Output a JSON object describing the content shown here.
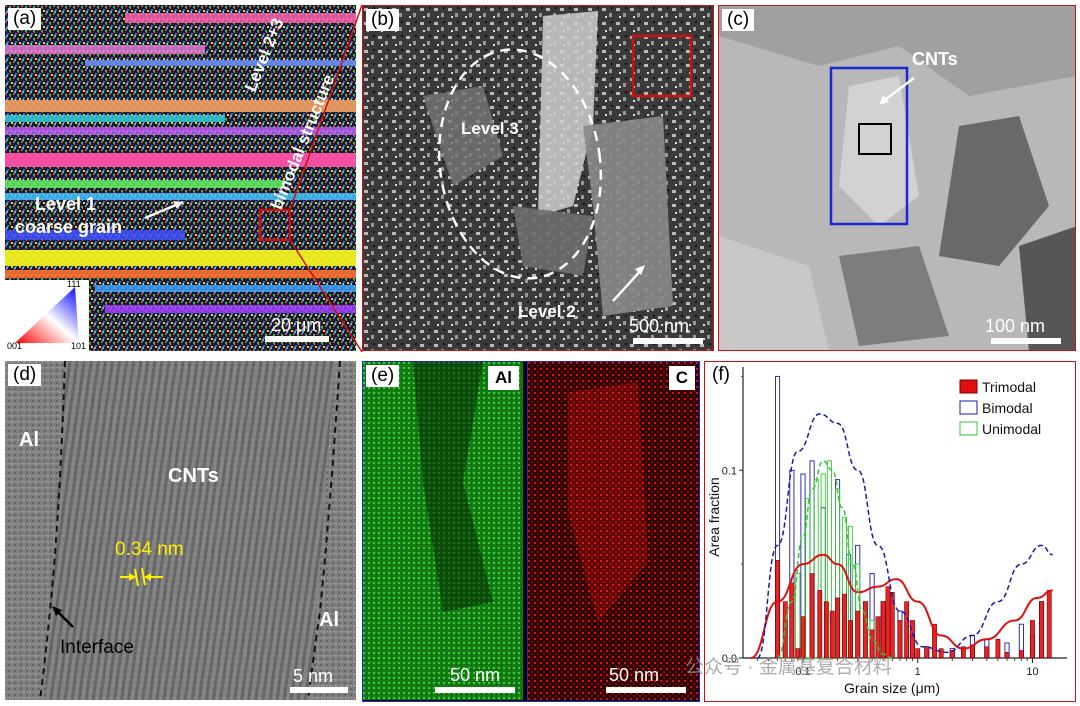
{
  "panels": {
    "a": {
      "label": "(a)",
      "annotation_level1_line1": "Level 1",
      "annotation_level1_line2": "coarse grain",
      "annotation_level23_line1": "Level 2+3",
      "annotation_level23_line2": "bimodal structure",
      "ipf_111": "111",
      "ipf_001": "001",
      "ipf_101": "101",
      "scale": "20 μm"
    },
    "b": {
      "label": "(b)",
      "level3": "Level 3",
      "level2": "Level 2",
      "scale": "500 nm"
    },
    "c": {
      "label": "(c)",
      "cnts": "CNTs",
      "scale": "100 nm"
    },
    "d": {
      "label": "(d)",
      "al_left": "Al",
      "al_right": "Al",
      "cnts": "CNTs",
      "spacing": "0.34 nm",
      "interface": "Interface",
      "scale": "5 nm"
    },
    "e": {
      "label": "(e)",
      "map_al": "Al",
      "map_c": "C",
      "scale_al": "50 nm",
      "scale_c": "50 nm"
    },
    "f": {
      "label": "(f)"
    }
  },
  "watermark": "公众号 · 金属基复合材料",
  "chart_data": {
    "type": "bar",
    "ylabel": "Area fraction",
    "xlabel": "Grain size (μm)",
    "xscale": "log",
    "xlim": [
      0.03,
      20
    ],
    "ylim": [
      0,
      0.155
    ],
    "xticks": [
      "0.1",
      "1",
      "10"
    ],
    "yticks": [
      "0.0",
      "0.1"
    ],
    "legend_position": "top-right",
    "colors": {
      "Trimodal": "#e01010",
      "Bimodal": "#1a1aa8",
      "Unimodal": "#35c935"
    },
    "series": [
      {
        "name": "Trimodal",
        "style": "filled bars + fitted solid curve",
        "x": [
          0.06,
          0.07,
          0.08,
          0.09,
          0.1,
          0.12,
          0.14,
          0.16,
          0.18,
          0.2,
          0.23,
          0.26,
          0.3,
          0.35,
          0.4,
          0.45,
          0.5,
          0.55,
          0.6,
          0.7,
          0.8,
          0.9,
          1.0,
          1.2,
          1.4,
          1.6,
          2.0,
          2.5,
          3.0,
          4.0,
          5.0,
          6.0,
          8.0,
          10.0,
          12.0,
          14.0
        ],
        "values": [
          0.052,
          0.03,
          0.04,
          0.005,
          0.022,
          0.045,
          0.036,
          0.03,
          0.025,
          0.032,
          0.034,
          0.02,
          0.025,
          0.03,
          0.015,
          0.022,
          0.03,
          0.038,
          0.035,
          0.02,
          0.03,
          0.02,
          0.005,
          0.006,
          0.018,
          0.005,
          0.004,
          0.006,
          0.007,
          0.006,
          0.01,
          0.003,
          0.004,
          0.02,
          0.03,
          0.036
        ],
        "fit_x": [
          0.035,
          0.06,
          0.1,
          0.15,
          0.2,
          0.3,
          0.45,
          0.65,
          1.0,
          1.6,
          2.5,
          4,
          7,
          11,
          15
        ],
        "fit_y": [
          0.0,
          0.03,
          0.05,
          0.055,
          0.05,
          0.035,
          0.038,
          0.042,
          0.03,
          0.012,
          0.005,
          0.01,
          0.02,
          0.032,
          0.036
        ]
      },
      {
        "name": "Bimodal",
        "style": "hollow bars + fitted dashed curve",
        "x": [
          0.06,
          0.08,
          0.1,
          0.12,
          0.15,
          0.2,
          0.25,
          0.3,
          0.4,
          0.5,
          0.7,
          0.9,
          1.2,
          2.0,
          3.0,
          4.0,
          6.0,
          8.0,
          10.0,
          12.0
        ],
        "values": [
          0.15,
          0.1,
          0.098,
          0.105,
          0.08,
          0.095,
          0.055,
          0.06,
          0.045,
          0.03,
          0.025,
          0.012,
          0.006,
          0.005,
          0.012,
          0.01,
          0.008,
          0.018,
          0.012,
          0.03
        ],
        "fit_x": [
          0.04,
          0.06,
          0.09,
          0.14,
          0.2,
          0.3,
          0.45,
          0.7,
          1.1,
          1.8,
          3,
          5,
          8,
          12,
          15
        ],
        "fit_y": [
          0.0,
          0.06,
          0.11,
          0.13,
          0.125,
          0.1,
          0.06,
          0.025,
          0.006,
          0.003,
          0.012,
          0.03,
          0.05,
          0.06,
          0.055
        ]
      },
      {
        "name": "Unimodal",
        "style": "hollow bars + fitted dashed curve",
        "x": [
          0.07,
          0.09,
          0.11,
          0.13,
          0.15,
          0.17,
          0.2,
          0.23,
          0.26,
          0.3,
          0.35,
          0.4,
          0.5
        ],
        "values": [
          0.02,
          0.045,
          0.085,
          0.095,
          0.098,
          0.105,
          0.09,
          0.075,
          0.07,
          0.05,
          0.03,
          0.02,
          0.008
        ],
        "fit_x": [
          0.06,
          0.08,
          0.1,
          0.12,
          0.15,
          0.18,
          0.22,
          0.27,
          0.33,
          0.4,
          0.5,
          0.6
        ],
        "fit_y": [
          0.0,
          0.03,
          0.065,
          0.09,
          0.105,
          0.1,
          0.08,
          0.05,
          0.025,
          0.01,
          0.002,
          0.0
        ]
      }
    ]
  }
}
